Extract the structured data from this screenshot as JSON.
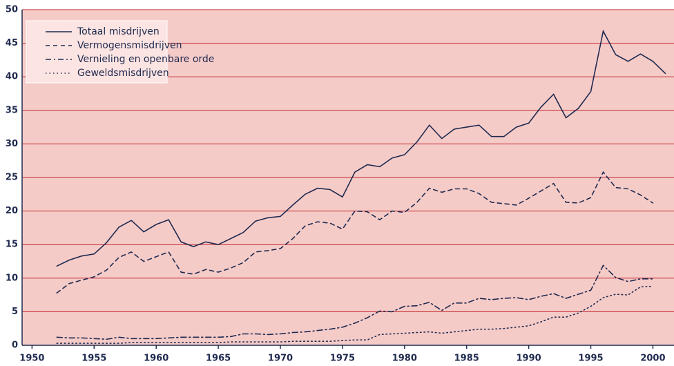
{
  "chart_data": {
    "type": "line",
    "x": [
      1952,
      1953,
      1954,
      1955,
      1956,
      1957,
      1958,
      1959,
      1960,
      1961,
      1962,
      1963,
      1964,
      1965,
      1966,
      1967,
      1968,
      1969,
      1970,
      1971,
      1972,
      1973,
      1974,
      1975,
      1976,
      1977,
      1978,
      1979,
      1980,
      1981,
      1982,
      1983,
      1984,
      1985,
      1986,
      1987,
      1988,
      1989,
      1990,
      1991,
      1992,
      1993,
      1994,
      1995,
      1996,
      1997,
      1998,
      1999,
      2000,
      2001
    ],
    "series": [
      {
        "name": "Totaal misdrijven",
        "color": "#1f2a4f",
        "dash": "solid",
        "values": [
          11.8,
          12.7,
          13.3,
          13.6,
          15.3,
          17.6,
          18.6,
          16.9,
          18.0,
          18.7,
          15.4,
          14.7,
          15.4,
          15.0,
          15.9,
          16.8,
          18.5,
          19.0,
          19.2,
          20.9,
          22.5,
          23.4,
          23.2,
          22.1,
          25.8,
          26.9,
          26.6,
          27.9,
          28.4,
          30.3,
          32.8,
          30.8,
          32.2,
          32.5,
          32.8,
          31.1,
          31.1,
          32.5,
          33.1,
          35.5,
          37.4,
          33.9,
          35.3,
          37.8,
          46.8,
          43.3,
          42.3,
          43.4,
          42.3,
          40.5
        ]
      },
      {
        "name": "Vermogensmisdrijven",
        "color": "#1f2a4f",
        "dash": "dashed",
        "values": [
          7.8,
          9.2,
          9.7,
          10.2,
          11.2,
          13.1,
          13.9,
          12.5,
          13.2,
          13.9,
          10.9,
          10.6,
          11.3,
          10.9,
          11.5,
          12.3,
          13.9,
          14.1,
          14.4,
          15.9,
          17.8,
          18.4,
          18.2,
          17.3,
          20.0,
          19.9,
          18.7,
          20.0,
          19.8,
          21.3,
          23.4,
          22.8,
          23.3,
          23.3,
          22.6,
          21.3,
          21.1,
          20.9,
          21.9,
          23.0,
          24.1,
          21.3,
          21.2,
          22.0,
          25.8,
          23.5,
          23.3,
          22.4,
          21.2,
          null
        ]
      },
      {
        "name": "Vernieling en openbare orde",
        "color": "#1f2a4f",
        "dash": "dashdot",
        "values": [
          1.2,
          1.1,
          1.1,
          1.0,
          0.9,
          1.2,
          1.0,
          1.0,
          1.0,
          1.1,
          1.2,
          1.2,
          1.2,
          1.2,
          1.3,
          1.7,
          1.7,
          1.6,
          1.7,
          1.9,
          2.0,
          2.2,
          2.4,
          2.7,
          3.3,
          4.1,
          5.1,
          5.0,
          5.8,
          5.9,
          6.4,
          5.2,
          6.3,
          6.3,
          7.0,
          6.8,
          7.0,
          7.1,
          6.8,
          7.3,
          7.7,
          7.0,
          7.6,
          8.2,
          11.9,
          10.1,
          9.5,
          9.9,
          9.9,
          null
        ]
      },
      {
        "name": "Geweldsmisdrijven",
        "color": "#1f2a4f",
        "dash": "dotted",
        "values": [
          0.3,
          0.3,
          0.3,
          0.3,
          0.3,
          0.3,
          0.4,
          0.4,
          0.4,
          0.4,
          0.4,
          0.4,
          0.4,
          0.4,
          0.5,
          0.5,
          0.5,
          0.5,
          0.5,
          0.6,
          0.6,
          0.6,
          0.6,
          0.7,
          0.8,
          0.8,
          1.6,
          1.7,
          1.8,
          1.9,
          2.0,
          1.8,
          2.0,
          2.2,
          2.4,
          2.4,
          2.5,
          2.7,
          2.9,
          3.5,
          4.2,
          4.2,
          4.8,
          5.8,
          7.1,
          7.6,
          7.5,
          8.7,
          8.8,
          null
        ]
      }
    ],
    "xlim": [
      1949.2,
      2001.7
    ],
    "xticks": [
      1950,
      1955,
      1960,
      1965,
      1970,
      1975,
      1980,
      1985,
      1990,
      1995,
      2000
    ],
    "ylim": [
      0,
      50
    ],
    "yticks": [
      0,
      5,
      10,
      15,
      20,
      25,
      30,
      35,
      40,
      45,
      50
    ],
    "grid": true,
    "legend": "upper left",
    "background": "#f5cbc8",
    "grid_color": "#c0282d"
  }
}
